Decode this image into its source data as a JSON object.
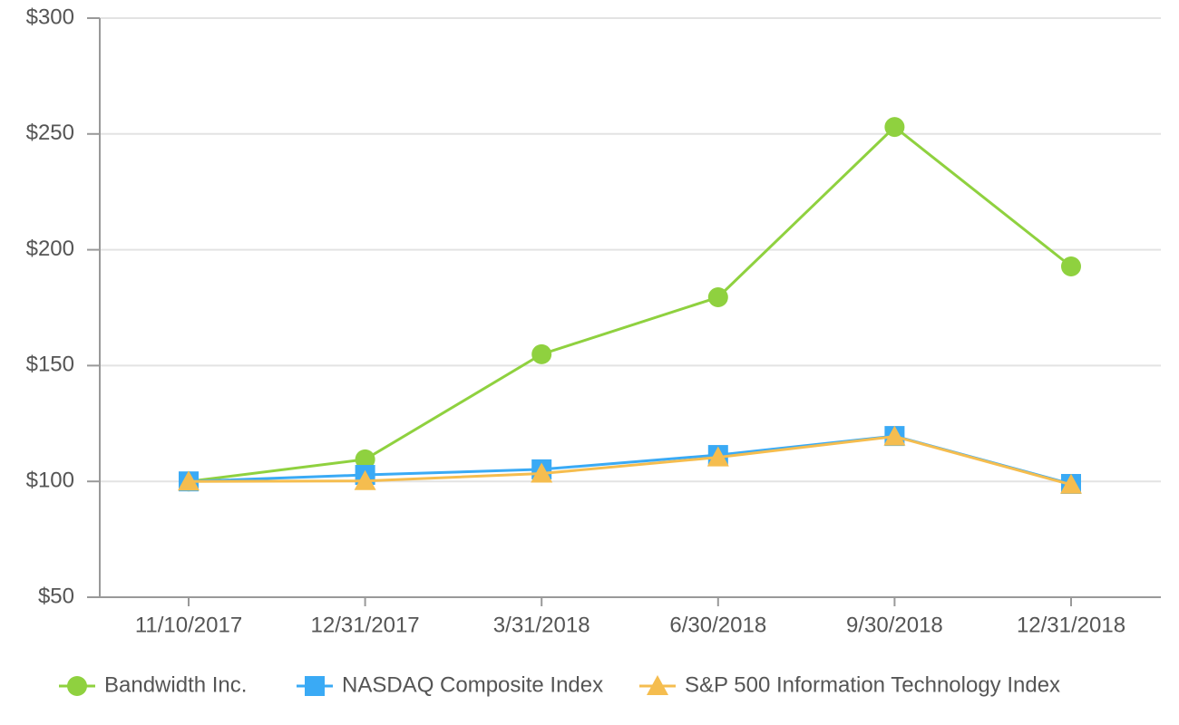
{
  "chart_data": {
    "type": "line",
    "categories": [
      "11/10/2017",
      "12/31/2017",
      "3/31/2018",
      "6/30/2018",
      "9/30/2018",
      "12/31/2018"
    ],
    "series": [
      {
        "name": "Bandwidth Inc.",
        "color": "#8fd13f",
        "marker": "circle",
        "values": [
          100,
          109.5,
          154.9,
          179.5,
          253,
          192.8
        ]
      },
      {
        "name": "NASDAQ Composite Index",
        "color": "#3aaaf5",
        "marker": "square",
        "values": [
          100,
          102.8,
          105.2,
          111.4,
          119.6,
          98.9
        ]
      },
      {
        "name": "S&P 500 Information Technology Index",
        "color": "#f5bd4f",
        "marker": "triangle",
        "values": [
          100,
          100.2,
          103.4,
          110.4,
          119.4,
          98.6
        ]
      }
    ],
    "ylim": [
      50,
      300
    ],
    "yticks": [
      {
        "value": 50,
        "label": "$50"
      },
      {
        "value": 100,
        "label": "$100"
      },
      {
        "value": 150,
        "label": "$150"
      },
      {
        "value": 200,
        "label": "$200"
      },
      {
        "value": 250,
        "label": "$250"
      },
      {
        "value": 300,
        "label": "$300"
      }
    ],
    "grid": true,
    "legend": "bottom"
  }
}
